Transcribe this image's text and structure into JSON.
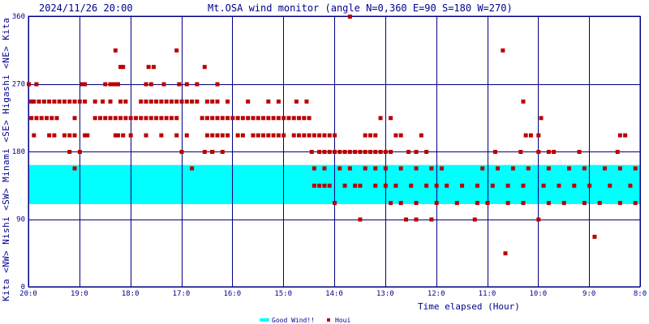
{
  "header": {
    "datetime": "2024/11/26 20:00",
    "title": "Mt.OSA wind monitor (angle N=0,360 E=90 S=180 W=270)"
  },
  "chart_data": {
    "type": "scatter",
    "xlabel": "Time elapsed (Hour)",
    "ylabel": "Kita (NW) Nishi (SW) Minami (SE) Higashi (NE) Kita",
    "y_axis_words": [
      "Kita",
      "<NW>",
      "Nishi",
      "<SW>",
      "Minami",
      "<SE>",
      "Higashi",
      "<NE>",
      "Kita"
    ],
    "ylim": [
      0,
      360
    ],
    "yticks": [
      0,
      90,
      180,
      270,
      360
    ],
    "xlim": [
      0,
      12
    ],
    "xticks": [
      0,
      1,
      2,
      3,
      4,
      5,
      6,
      7,
      8,
      9,
      10,
      11,
      12
    ],
    "xtick_labels": [
      "20:0",
      "19:0",
      "18:0",
      "17:0",
      "16:0",
      "15:0",
      "14:0",
      "13:0",
      "12:0",
      "11:0",
      "10:0",
      "9:0",
      "8:0"
    ],
    "grid": true,
    "good_wind_band": {
      "ymin": 110,
      "ymax": 162,
      "color": "#00ffff"
    },
    "series": [
      {
        "name": "Good Wind!!",
        "color": "#00ffff",
        "marker": "band"
      },
      {
        "name": "Houi",
        "color": "#bb0000",
        "marker": "square",
        "points": [
          [
            0.0,
            270
          ],
          [
            0.05,
            247
          ],
          [
            0.05,
            225
          ],
          [
            0.1,
            202
          ],
          [
            0.15,
            270
          ],
          [
            0.1,
            247
          ],
          [
            0.2,
            247
          ],
          [
            0.3,
            247
          ],
          [
            0.4,
            247
          ],
          [
            0.5,
            247
          ],
          [
            0.6,
            247
          ],
          [
            0.7,
            247
          ],
          [
            0.8,
            247
          ],
          [
            0.9,
            247
          ],
          [
            1.0,
            247
          ],
          [
            1.1,
            247
          ],
          [
            0.15,
            225
          ],
          [
            0.25,
            225
          ],
          [
            0.35,
            225
          ],
          [
            0.45,
            225
          ],
          [
            0.55,
            225
          ],
          [
            0.9,
            225
          ],
          [
            0.4,
            202
          ],
          [
            0.5,
            202
          ],
          [
            0.7,
            202
          ],
          [
            0.8,
            202
          ],
          [
            0.9,
            202
          ],
          [
            1.1,
            202
          ],
          [
            1.15,
            202
          ],
          [
            0.8,
            180
          ],
          [
            1.0,
            180
          ],
          [
            0.9,
            158
          ],
          [
            1.05,
            270
          ],
          [
            1.1,
            270
          ],
          [
            1.5,
            270
          ],
          [
            1.6,
            270
          ],
          [
            1.7,
            270
          ],
          [
            1.65,
            270
          ],
          [
            1.75,
            270
          ],
          [
            1.3,
            225
          ],
          [
            1.4,
            225
          ],
          [
            1.5,
            225
          ],
          [
            1.6,
            225
          ],
          [
            1.7,
            225
          ],
          [
            1.8,
            225
          ],
          [
            1.9,
            225
          ],
          [
            2.0,
            225
          ],
          [
            2.1,
            225
          ],
          [
            2.2,
            225
          ],
          [
            2.3,
            225
          ],
          [
            2.4,
            225
          ],
          [
            2.5,
            225
          ],
          [
            2.6,
            225
          ],
          [
            2.7,
            225
          ],
          [
            2.8,
            225
          ],
          [
            2.9,
            225
          ],
          [
            1.3,
            247
          ],
          [
            1.45,
            247
          ],
          [
            1.6,
            247
          ],
          [
            1.8,
            247
          ],
          [
            1.9,
            247
          ],
          [
            2.2,
            247
          ],
          [
            2.3,
            247
          ],
          [
            2.4,
            247
          ],
          [
            2.5,
            247
          ],
          [
            2.6,
            247
          ],
          [
            2.7,
            247
          ],
          [
            2.8,
            247
          ],
          [
            2.9,
            247
          ],
          [
            3.0,
            247
          ],
          [
            3.1,
            247
          ],
          [
            3.2,
            247
          ],
          [
            3.3,
            247
          ],
          [
            3.5,
            247
          ],
          [
            3.6,
            247
          ],
          [
            3.7,
            247
          ],
          [
            1.7,
            202
          ],
          [
            1.75,
            202
          ],
          [
            1.85,
            202
          ],
          [
            2.0,
            202
          ],
          [
            2.3,
            202
          ],
          [
            2.6,
            202
          ],
          [
            2.9,
            202
          ],
          [
            3.1,
            202
          ],
          [
            3.5,
            202
          ],
          [
            1.7,
            315
          ],
          [
            1.8,
            293
          ],
          [
            1.85,
            293
          ],
          [
            2.35,
            293
          ],
          [
            2.45,
            293
          ],
          [
            2.3,
            270
          ],
          [
            2.4,
            270
          ],
          [
            2.65,
            270
          ],
          [
            2.95,
            270
          ],
          [
            3.1,
            270
          ],
          [
            3.3,
            270
          ],
          [
            2.9,
            315
          ],
          [
            3.45,
            293
          ],
          [
            3.7,
            270
          ],
          [
            3.0,
            180
          ],
          [
            3.45,
            180
          ],
          [
            3.6,
            180
          ],
          [
            3.2,
            158
          ],
          [
            3.4,
            225
          ],
          [
            3.5,
            225
          ],
          [
            3.6,
            225
          ],
          [
            3.7,
            225
          ],
          [
            3.8,
            225
          ],
          [
            3.9,
            225
          ],
          [
            4.0,
            225
          ],
          [
            4.1,
            225
          ],
          [
            4.2,
            225
          ],
          [
            4.3,
            225
          ],
          [
            4.4,
            225
          ],
          [
            4.5,
            225
          ],
          [
            4.6,
            225
          ],
          [
            4.7,
            225
          ],
          [
            4.8,
            225
          ],
          [
            4.9,
            225
          ],
          [
            5.0,
            225
          ],
          [
            5.1,
            225
          ],
          [
            5.2,
            225
          ],
          [
            5.3,
            225
          ],
          [
            5.4,
            225
          ],
          [
            5.5,
            225
          ],
          [
            3.6,
            202
          ],
          [
            3.7,
            202
          ],
          [
            3.8,
            202
          ],
          [
            3.9,
            202
          ],
          [
            4.1,
            202
          ],
          [
            4.2,
            202
          ],
          [
            4.4,
            202
          ],
          [
            4.5,
            202
          ],
          [
            4.6,
            202
          ],
          [
            4.7,
            202
          ],
          [
            4.8,
            202
          ],
          [
            4.9,
            202
          ],
          [
            5.0,
            202
          ],
          [
            5.2,
            202
          ],
          [
            5.3,
            202
          ],
          [
            5.4,
            202
          ],
          [
            5.5,
            202
          ],
          [
            5.6,
            202
          ],
          [
            5.7,
            202
          ],
          [
            5.8,
            202
          ],
          [
            3.6,
            180
          ],
          [
            3.8,
            180
          ],
          [
            3.9,
            247
          ],
          [
            4.3,
            247
          ],
          [
            4.7,
            247
          ],
          [
            4.9,
            247
          ],
          [
            5.25,
            247
          ],
          [
            5.45,
            247
          ],
          [
            5.55,
            180
          ],
          [
            5.7,
            180
          ],
          [
            5.8,
            180
          ],
          [
            5.9,
            180
          ],
          [
            6.0,
            180
          ],
          [
            6.1,
            180
          ],
          [
            6.2,
            180
          ],
          [
            6.3,
            180
          ],
          [
            6.4,
            180
          ],
          [
            6.5,
            180
          ],
          [
            6.6,
            180
          ],
          [
            6.7,
            180
          ],
          [
            6.8,
            180
          ],
          [
            6.9,
            180
          ],
          [
            7.0,
            180
          ],
          [
            7.1,
            180
          ],
          [
            5.9,
            202
          ],
          [
            6.0,
            202
          ],
          [
            6.6,
            202
          ],
          [
            6.7,
            202
          ],
          [
            6.8,
            202
          ],
          [
            6.9,
            225
          ],
          [
            7.1,
            225
          ],
          [
            7.2,
            202
          ],
          [
            7.3,
            202
          ],
          [
            7.45,
            180
          ],
          [
            7.6,
            180
          ],
          [
            7.7,
            202
          ],
          [
            7.8,
            180
          ],
          [
            6.3,
            360
          ],
          [
            6.5,
            90
          ],
          [
            7.4,
            90
          ],
          [
            7.6,
            90
          ],
          [
            7.9,
            90
          ],
          [
            8.75,
            90
          ],
          [
            10.0,
            90
          ],
          [
            5.6,
            135
          ],
          [
            5.7,
            135
          ],
          [
            5.8,
            135
          ],
          [
            5.9,
            135
          ],
          [
            6.2,
            135
          ],
          [
            6.4,
            135
          ],
          [
            6.5,
            135
          ],
          [
            6.8,
            135
          ],
          [
            7.0,
            135
          ],
          [
            7.2,
            135
          ],
          [
            7.5,
            135
          ],
          [
            7.8,
            135
          ],
          [
            8.0,
            135
          ],
          [
            8.2,
            135
          ],
          [
            8.5,
            135
          ],
          [
            8.8,
            135
          ],
          [
            9.1,
            135
          ],
          [
            9.4,
            135
          ],
          [
            9.7,
            135
          ],
          [
            10.1,
            135
          ],
          [
            10.4,
            135
          ],
          [
            10.7,
            135
          ],
          [
            11.0,
            135
          ],
          [
            11.4,
            135
          ],
          [
            11.8,
            135
          ],
          [
            5.6,
            158
          ],
          [
            5.8,
            158
          ],
          [
            6.1,
            158
          ],
          [
            6.3,
            158
          ],
          [
            6.6,
            158
          ],
          [
            6.8,
            158
          ],
          [
            7.0,
            158
          ],
          [
            7.3,
            158
          ],
          [
            7.6,
            158
          ],
          [
            7.9,
            158
          ],
          [
            8.1,
            158
          ],
          [
            8.9,
            158
          ],
          [
            9.2,
            158
          ],
          [
            9.5,
            158
          ],
          [
            9.8,
            158
          ],
          [
            10.2,
            158
          ],
          [
            10.6,
            158
          ],
          [
            10.9,
            158
          ],
          [
            11.3,
            158
          ],
          [
            11.6,
            158
          ],
          [
            11.9,
            158
          ],
          [
            6.0,
            112
          ],
          [
            7.1,
            112
          ],
          [
            7.3,
            112
          ],
          [
            7.6,
            112
          ],
          [
            8.0,
            112
          ],
          [
            8.4,
            112
          ],
          [
            8.8,
            112
          ],
          [
            9.0,
            112
          ],
          [
            9.4,
            112
          ],
          [
            9.7,
            112
          ],
          [
            10.2,
            112
          ],
          [
            10.5,
            112
          ],
          [
            10.9,
            112
          ],
          [
            11.2,
            112
          ],
          [
            11.6,
            112
          ],
          [
            11.9,
            112
          ],
          [
            9.3,
            315
          ],
          [
            9.35,
            45
          ],
          [
            9.15,
            180
          ],
          [
            9.65,
            180
          ],
          [
            10.0,
            180
          ],
          [
            10.2,
            180
          ],
          [
            10.3,
            180
          ],
          [
            10.8,
            180
          ],
          [
            11.55,
            180
          ],
          [
            9.7,
            247
          ],
          [
            9.75,
            202
          ],
          [
            9.85,
            202
          ],
          [
            10.05,
            225
          ],
          [
            10.0,
            202
          ],
          [
            11.6,
            202
          ],
          [
            11.7,
            202
          ],
          [
            11.1,
            67
          ]
        ]
      }
    ]
  }
}
